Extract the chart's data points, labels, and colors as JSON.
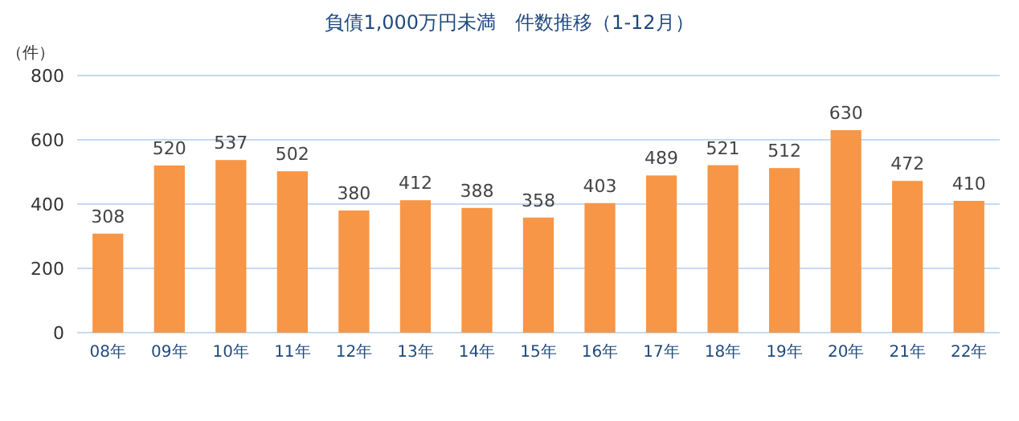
{
  "chart_data": {
    "type": "bar",
    "title": "負債1,000万円未満　件数推移（1-12月）",
    "ylabel": "（件）",
    "categories": [
      "08年",
      "09年",
      "10年",
      "11年",
      "12年",
      "13年",
      "14年",
      "15年",
      "16年",
      "17年",
      "18年",
      "19年",
      "20年",
      "21年",
      "22年"
    ],
    "values": [
      308,
      520,
      537,
      502,
      380,
      412,
      388,
      358,
      403,
      489,
      521,
      512,
      630,
      472,
      410
    ],
    "color": "#f79646",
    "ylim": [
      0,
      800
    ],
    "yticks": [
      0,
      200,
      400,
      600,
      800
    ],
    "grid": "y",
    "data_labels": true
  }
}
